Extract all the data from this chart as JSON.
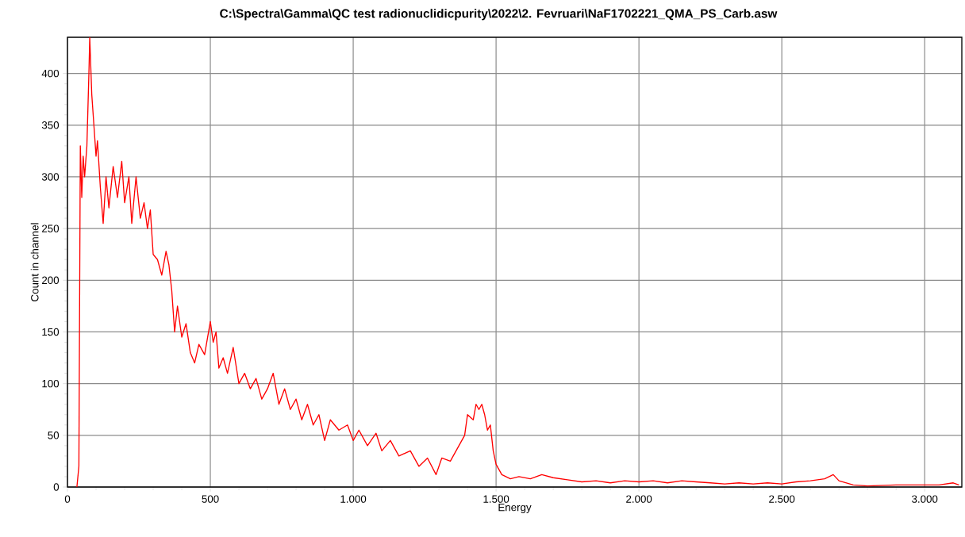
{
  "chart_data": {
    "type": "line",
    "title": "C:\\Spectra\\Gamma\\QC test radionuclidicpurity\\2022\\2. Fevruari\\NaF1702221_QMA_PS_Carb.asw",
    "xlabel": "Energy",
    "ylabel": "Count in channel",
    "color": "#ff0000",
    "grid": true,
    "xlim": [
      0,
      3130
    ],
    "ylim": [
      0,
      435
    ],
    "xticks": [
      0,
      500,
      {
        "value": 1000,
        "label": "1.000"
      },
      {
        "value": 1500,
        "label": "1.500"
      },
      {
        "value": 2000,
        "label": "2.000"
      },
      {
        "value": 2500,
        "label": "2.500"
      },
      {
        "value": 3000,
        "label": "3.000"
      }
    ],
    "yticks": [
      0,
      50,
      100,
      150,
      200,
      250,
      300,
      350,
      400
    ],
    "x": [
      33,
      40,
      45,
      50,
      55,
      60,
      68,
      75,
      78,
      85,
      90,
      100,
      105,
      115,
      125,
      135,
      145,
      160,
      175,
      190,
      200,
      215,
      225,
      240,
      255,
      268,
      280,
      290,
      300,
      315,
      330,
      345,
      355,
      365,
      375,
      385,
      400,
      415,
      430,
      445,
      460,
      480,
      500,
      510,
      520,
      530,
      545,
      560,
      580,
      600,
      620,
      640,
      660,
      680,
      700,
      720,
      740,
      760,
      780,
      800,
      820,
      840,
      860,
      880,
      900,
      920,
      950,
      980,
      1000,
      1020,
      1050,
      1080,
      1100,
      1130,
      1160,
      1200,
      1230,
      1260,
      1290,
      1310,
      1340,
      1370,
      1390,
      1400,
      1420,
      1430,
      1440,
      1450,
      1460,
      1470,
      1480,
      1490,
      1500,
      1520,
      1550,
      1580,
      1620,
      1660,
      1700,
      1750,
      1800,
      1850,
      1900,
      1950,
      2000,
      2050,
      2100,
      2150,
      2200,
      2250,
      2300,
      2350,
      2400,
      2450,
      2500,
      2550,
      2600,
      2650,
      2680,
      2700,
      2750,
      2800,
      2900,
      3000,
      3050,
      3100,
      3120
    ],
    "values": [
      0,
      20,
      330,
      280,
      320,
      300,
      330,
      400,
      435,
      380,
      360,
      320,
      335,
      290,
      255,
      300,
      270,
      310,
      280,
      315,
      275,
      300,
      255,
      300,
      260,
      275,
      250,
      268,
      225,
      220,
      205,
      228,
      215,
      190,
      150,
      175,
      145,
      158,
      130,
      120,
      138,
      128,
      160,
      140,
      150,
      115,
      125,
      110,
      135,
      100,
      110,
      95,
      105,
      85,
      95,
      110,
      80,
      95,
      75,
      85,
      65,
      80,
      60,
      70,
      45,
      65,
      55,
      60,
      45,
      55,
      40,
      52,
      35,
      45,
      30,
      35,
      20,
      28,
      12,
      28,
      25,
      40,
      50,
      70,
      65,
      80,
      75,
      80,
      70,
      55,
      60,
      35,
      22,
      12,
      8,
      10,
      8,
      12,
      9,
      7,
      5,
      6,
      4,
      6,
      5,
      6,
      4,
      6,
      5,
      4,
      3,
      4,
      3,
      4,
      3,
      5,
      6,
      8,
      12,
      6,
      2,
      1,
      2,
      2,
      2,
      4,
      2
    ]
  }
}
